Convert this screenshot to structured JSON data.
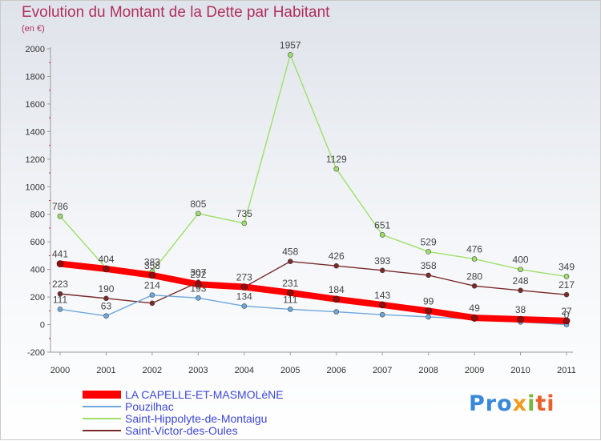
{
  "chart_data": {
    "type": "line",
    "title": "Evolution du Montant de la Dette par Habitant",
    "subtitle": "(en €)",
    "x": [
      "2000",
      "2001",
      "2002",
      "2003",
      "2004",
      "2005",
      "2006",
      "2007",
      "2008",
      "2009",
      "2010",
      "2011"
    ],
    "ylim": [
      -200,
      2000
    ],
    "yticks": [
      -200,
      0,
      200,
      400,
      600,
      800,
      1000,
      1200,
      1400,
      1600,
      1800,
      2000
    ],
    "grid": false,
    "legend_position": "bottom-left",
    "series": [
      {
        "name": "LA CAPELLE-ET-MASMOLèNE",
        "color": "#ff0000",
        "values": [
          441,
          404,
          358,
          292,
          273,
          231,
          184,
          143,
          99,
          49,
          38,
          27
        ],
        "labels": [
          "441",
          "404",
          "358",
          "292",
          "273",
          "231",
          "184",
          "143",
          "99",
          "49",
          "38",
          "27"
        ]
      },
      {
        "name": "Pouzilhac",
        "color": "#6fa8dc",
        "values": [
          111,
          63,
          214,
          193,
          134,
          111,
          93,
          72,
          56,
          39,
          19,
          0
        ],
        "labels": [
          "111",
          "63",
          "214",
          "193",
          "134",
          "111",
          "",
          "",
          "",
          "",
          "",
          "0"
        ]
      },
      {
        "name": "Saint-Hippolyte-de-Montaigu",
        "color": "#9ee06a",
        "values": [
          786,
          409,
          383,
          805,
          735,
          1957,
          1129,
          651,
          529,
          476,
          400,
          349
        ],
        "labels": [
          "786",
          "",
          "383",
          "805",
          "735",
          "1957",
          "1129",
          "651",
          "529",
          "476",
          "400",
          "349"
        ]
      },
      {
        "name": "Saint-Victor-des-Oules",
        "color": "#7a2a2a",
        "values": [
          223,
          190,
          155,
          307,
          272,
          458,
          426,
          393,
          358,
          280,
          248,
          217
        ],
        "labels": [
          "223",
          "190",
          "",
          "307",
          "",
          "458",
          "426",
          "393",
          "358",
          "280",
          "248",
          "217"
        ]
      }
    ]
  },
  "logo": {
    "part1": "Pro",
    "part2": "x",
    "part3": "i",
    "part4": "ti"
  }
}
